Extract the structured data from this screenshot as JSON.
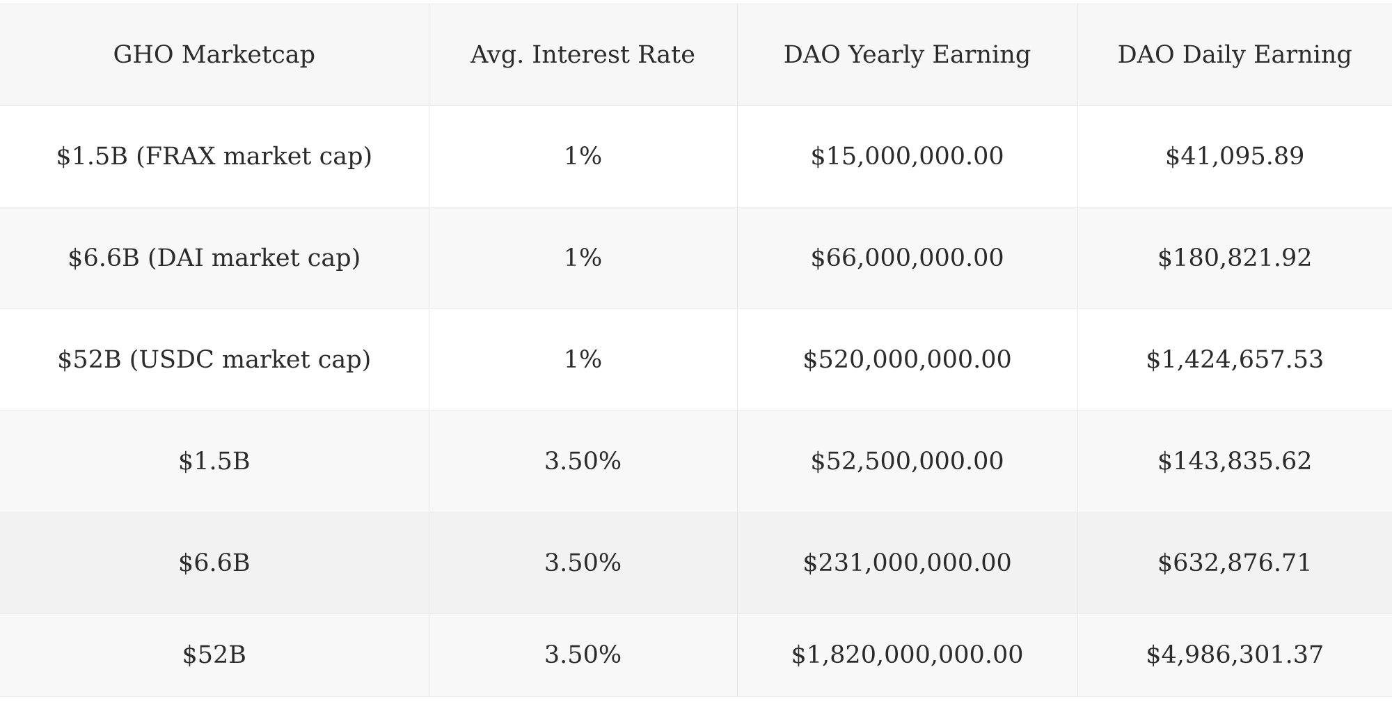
{
  "table": {
    "headers": [
      "GHO Marketcap",
      "Avg. Interest Rate",
      "DAO Yearly Earning",
      "DAO Daily Earning"
    ],
    "rows": [
      [
        "$1.5B (FRAX market cap)",
        "1%",
        "$15,000,000.00",
        "$41,095.89"
      ],
      [
        "$6.6B (DAI market cap)",
        "1%",
        "$66,000,000.00",
        "$180,821.92"
      ],
      [
        "$52B (USDC market cap)",
        "1%",
        "$520,000,000.00",
        "$1,424,657.53"
      ],
      [
        "$1.5B",
        "3.50%",
        "$52,500,000.00",
        "$143,835.62"
      ],
      [
        "$6.6B",
        "3.50%",
        "$231,000,000.00",
        "$632,876.71"
      ],
      [
        "$52B",
        "3.50%",
        "$1,820,000,000.00",
        "$4,986,301.37"
      ]
    ]
  },
  "colors": {
    "header_bg": "#f7f7f7",
    "row_odd_bg": "#ffffff",
    "row_even_bg": "#f8f8f8",
    "row_highlight_bg": "#f2f2f2",
    "text": "#2b2b2b",
    "border": "#e6e6e6"
  }
}
